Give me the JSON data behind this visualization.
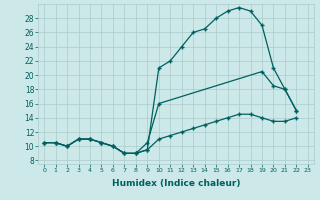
{
  "xlabel": "Humidex (Indice chaleur)",
  "x_ticks": [
    0,
    1,
    2,
    3,
    4,
    5,
    6,
    7,
    8,
    9,
    10,
    11,
    12,
    13,
    14,
    15,
    16,
    17,
    18,
    19,
    20,
    21,
    22,
    23
  ],
  "xlim": [
    -0.5,
    23.5
  ],
  "ylim": [
    7.5,
    30
  ],
  "y_ticks": [
    8,
    10,
    12,
    14,
    16,
    18,
    20,
    22,
    24,
    26,
    28
  ],
  "background_color": "#cce8e8",
  "grid_color": "#aacccc",
  "line_color": "#006060",
  "series": [
    {
      "x": [
        0,
        1,
        2,
        3,
        4,
        5,
        6,
        7,
        8,
        9,
        10,
        11,
        12,
        13,
        14,
        15,
        16,
        17,
        18,
        19,
        20,
        21,
        22
      ],
      "y": [
        10.5,
        10.5,
        10,
        11,
        11,
        10.5,
        10,
        9,
        9,
        9.5,
        21,
        22,
        24,
        26,
        26.5,
        28,
        29,
        29.5,
        29,
        27,
        21,
        18,
        15
      ]
    },
    {
      "x": [
        0,
        1,
        2,
        3,
        4,
        5,
        6,
        7,
        8,
        9,
        10,
        19,
        20,
        21,
        22
      ],
      "y": [
        10.5,
        10.5,
        10,
        11,
        11,
        10.5,
        10,
        9,
        9,
        10.5,
        16,
        20.5,
        18.5,
        18,
        15
      ]
    },
    {
      "x": [
        0,
        1,
        2,
        3,
        4,
        5,
        6,
        7,
        8,
        9,
        10,
        11,
        12,
        13,
        14,
        15,
        16,
        17,
        18,
        19,
        20,
        21,
        22
      ],
      "y": [
        10.5,
        10.5,
        10,
        11,
        11,
        10.5,
        10,
        9,
        9,
        9.5,
        11,
        11.5,
        12,
        12.5,
        13,
        13.5,
        14,
        14.5,
        14.5,
        14,
        13.5,
        13.5,
        14
      ]
    }
  ]
}
